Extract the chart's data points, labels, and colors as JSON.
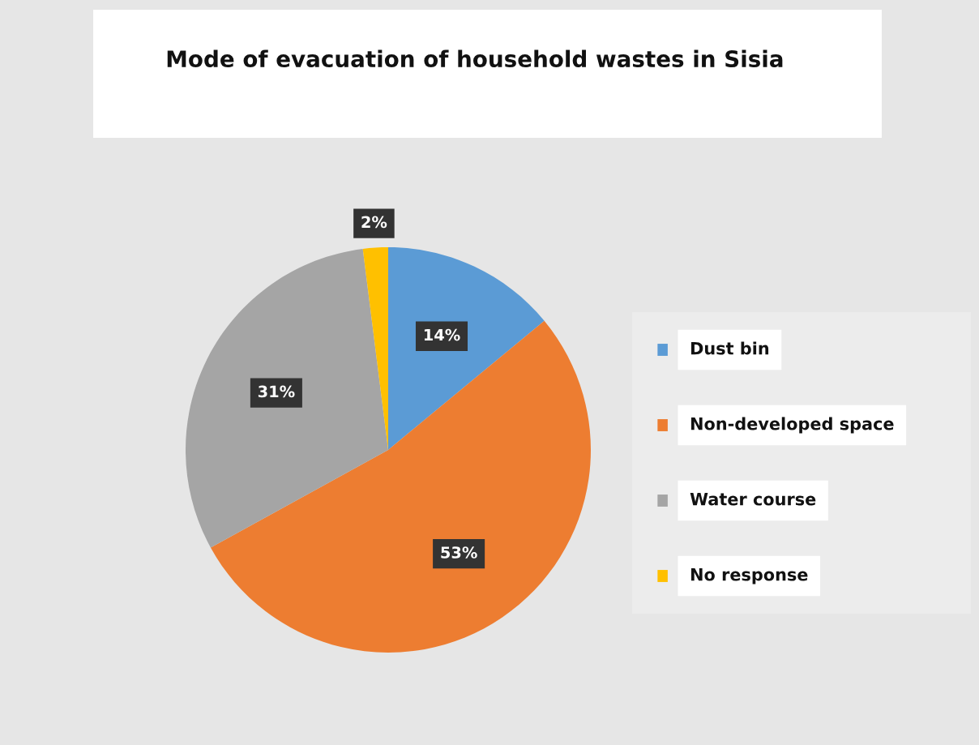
{
  "chart_data": {
    "type": "pie",
    "title": "Mode of evacuation of household wastes in Sisia",
    "categories": [
      "Dust bin",
      "Non-developed space",
      "Water course",
      "No response"
    ],
    "values": [
      14,
      53,
      31,
      2
    ],
    "colors": [
      "#5b9bd5",
      "#ed7d31",
      "#a5a5a5",
      "#ffc000"
    ],
    "value_labels": [
      "14%",
      "53%",
      "31%",
      "2%"
    ],
    "legend": "right"
  }
}
